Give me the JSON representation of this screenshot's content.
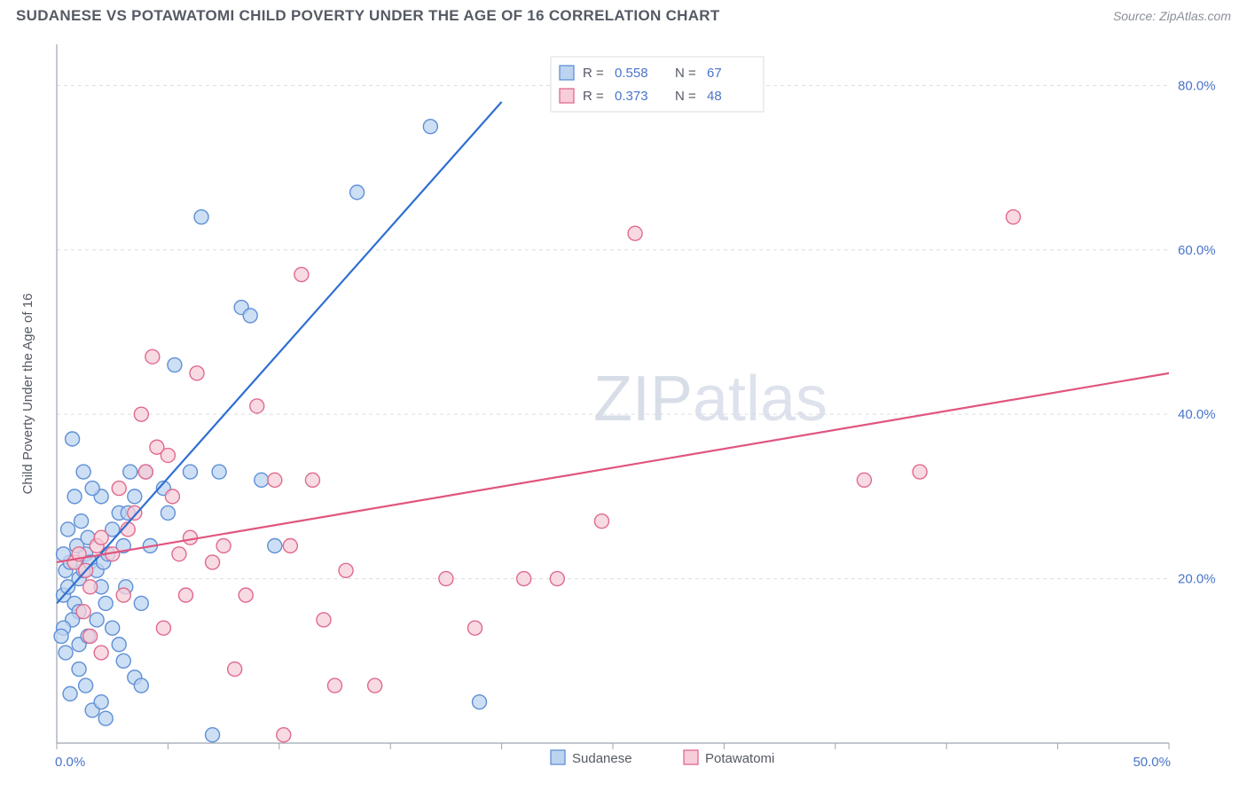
{
  "title": "SUDANESE VS POTAWATOMI CHILD POVERTY UNDER THE AGE OF 16 CORRELATION CHART",
  "source_label": "Source: ZipAtlas.com",
  "watermark": "ZIPatlas",
  "ylabel": "Child Poverty Under the Age of 16",
  "chart": {
    "type": "scatter",
    "background_color": "#ffffff",
    "grid_color": "#d9dde3",
    "axis_color": "#9ea4b0",
    "text_color": "#555a64",
    "value_color": "#4a74c9",
    "xlim": [
      0,
      50
    ],
    "ylim": [
      0,
      85
    ],
    "x_ticks": [
      0,
      5,
      10,
      15,
      20,
      25,
      30,
      35,
      40,
      45,
      50
    ],
    "x_tick_labels": {
      "0": "0.0%",
      "50": "50.0%"
    },
    "y_grid": [
      20,
      40,
      60,
      80
    ],
    "y_tick_labels": {
      "20": "20.0%",
      "40": "40.0%",
      "60": "60.0%",
      "80": "80.0%"
    },
    "marker_radius": 8,
    "marker_stroke_width": 1.4,
    "line_width": 2.2,
    "series": [
      {
        "name": "Sudanese",
        "fill": "#bcd4f0",
        "stroke": "#5f8fd6",
        "line_color": "#2f6fd0",
        "R": "0.558",
        "N": "67",
        "trend": {
          "x1": 0,
          "y1": 17,
          "x2": 20,
          "y2": 78
        },
        "points": [
          [
            0.3,
            18
          ],
          [
            0.5,
            19
          ],
          [
            0.4,
            21
          ],
          [
            0.6,
            22
          ],
          [
            0.8,
            17
          ],
          [
            1.0,
            16
          ],
          [
            0.7,
            15
          ],
          [
            0.3,
            14
          ],
          [
            1.0,
            20
          ],
          [
            1.2,
            21
          ],
          [
            1.3,
            23
          ],
          [
            1.5,
            22
          ],
          [
            0.9,
            24
          ],
          [
            0.5,
            26
          ],
          [
            1.1,
            27
          ],
          [
            1.4,
            25
          ],
          [
            1.8,
            21
          ],
          [
            2.0,
            19
          ],
          [
            2.1,
            22
          ],
          [
            2.3,
            23
          ],
          [
            2.5,
            26
          ],
          [
            2.8,
            28
          ],
          [
            2.0,
            30
          ],
          [
            1.6,
            31
          ],
          [
            3.0,
            24
          ],
          [
            3.2,
            28
          ],
          [
            3.3,
            33
          ],
          [
            3.5,
            30
          ],
          [
            3.1,
            19
          ],
          [
            0.7,
            37
          ],
          [
            0.8,
            30
          ],
          [
            1.2,
            33
          ],
          [
            2.2,
            17
          ],
          [
            2.5,
            14
          ],
          [
            2.8,
            12
          ],
          [
            3.0,
            10
          ],
          [
            3.5,
            8
          ],
          [
            3.8,
            7
          ],
          [
            1.0,
            9
          ],
          [
            1.3,
            7
          ],
          [
            1.6,
            4
          ],
          [
            2.0,
            5
          ],
          [
            0.6,
            6
          ],
          [
            0.4,
            11
          ],
          [
            0.2,
            13
          ],
          [
            4.0,
            33
          ],
          [
            4.2,
            24
          ],
          [
            4.8,
            31
          ],
          [
            5.0,
            28
          ],
          [
            5.3,
            46
          ],
          [
            6.0,
            33
          ],
          [
            6.5,
            64
          ],
          [
            7.0,
            1
          ],
          [
            7.3,
            33
          ],
          [
            8.3,
            53
          ],
          [
            8.7,
            52
          ],
          [
            9.2,
            32
          ],
          [
            9.8,
            24
          ],
          [
            1.0,
            12
          ],
          [
            1.4,
            13
          ],
          [
            1.8,
            15
          ],
          [
            2.2,
            3
          ],
          [
            16.8,
            75
          ],
          [
            13.5,
            67
          ],
          [
            19.0,
            5
          ],
          [
            3.8,
            17
          ],
          [
            0.3,
            23
          ]
        ]
      },
      {
        "name": "Potawatomi",
        "fill": "#f6cdd8",
        "stroke": "#e06a8e",
        "line_color": "#e0557e",
        "R": "0.373",
        "N": "48",
        "trend": {
          "x1": 0,
          "y1": 22,
          "x2": 50,
          "y2": 45
        },
        "points": [
          [
            0.8,
            22
          ],
          [
            1.0,
            23
          ],
          [
            1.3,
            21
          ],
          [
            1.5,
            19
          ],
          [
            1.8,
            24
          ],
          [
            2.0,
            25
          ],
          [
            2.5,
            23
          ],
          [
            2.8,
            31
          ],
          [
            3.0,
            18
          ],
          [
            3.2,
            26
          ],
          [
            3.5,
            28
          ],
          [
            3.8,
            40
          ],
          [
            4.0,
            33
          ],
          [
            4.3,
            47
          ],
          [
            4.5,
            36
          ],
          [
            5.0,
            35
          ],
          [
            5.2,
            30
          ],
          [
            5.5,
            23
          ],
          [
            5.8,
            18
          ],
          [
            6.0,
            25
          ],
          [
            6.3,
            45
          ],
          [
            7.0,
            22
          ],
          [
            7.5,
            24
          ],
          [
            8.0,
            9
          ],
          [
            8.5,
            18
          ],
          [
            9.0,
            41
          ],
          [
            9.8,
            32
          ],
          [
            10.2,
            1
          ],
          [
            10.5,
            24
          ],
          [
            11.0,
            57
          ],
          [
            11.5,
            32
          ],
          [
            12.0,
            15
          ],
          [
            12.5,
            7
          ],
          [
            13.0,
            21
          ],
          [
            14.3,
            7
          ],
          [
            17.5,
            20
          ],
          [
            18.8,
            14
          ],
          [
            21.0,
            20
          ],
          [
            22.5,
            20
          ],
          [
            24.5,
            27
          ],
          [
            26.0,
            62
          ],
          [
            36.3,
            32
          ],
          [
            38.8,
            33
          ],
          [
            43.0,
            64
          ],
          [
            1.2,
            16
          ],
          [
            1.5,
            13
          ],
          [
            2.0,
            11
          ],
          [
            4.8,
            14
          ]
        ]
      }
    ],
    "legend_bottom": [
      "Sudanese",
      "Potawatomi"
    ],
    "stats_box": {
      "rows": [
        {
          "series": 0,
          "R_label": "R =",
          "N_label": "N ="
        },
        {
          "series": 1,
          "R_label": "R =",
          "N_label": "N ="
        }
      ]
    }
  }
}
